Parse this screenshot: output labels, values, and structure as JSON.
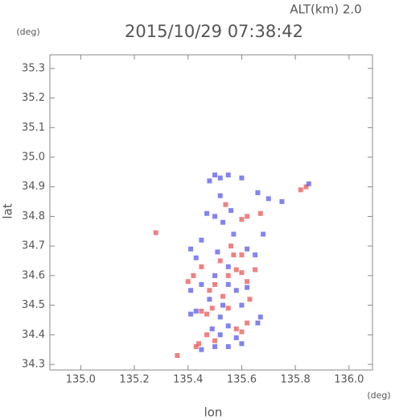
{
  "altitude_label": "ALT(km) 2.0",
  "chart_data": {
    "type": "scatter",
    "title": "2015/10/29 07:38:42",
    "y_unit": "(deg)",
    "x_unit": "(deg)",
    "ylabel": "lat",
    "xlabel": "lon",
    "xlim": [
      134.885,
      136.0875
    ],
    "ylim": [
      34.281,
      35.346
    ],
    "xticks": [
      {
        "value": 135,
        "label": "135.0"
      },
      135.2,
      135.4,
      135.6,
      135.8,
      {
        "value": 136,
        "label": "136.0"
      }
    ],
    "yticks": [
      34.3,
      34.4,
      34.5,
      34.6,
      34.7,
      34.8,
      34.9,
      {
        "value": 35,
        "label": "35.0"
      },
      35.1,
      35.2,
      35.3
    ],
    "series": [
      {
        "color": "#e85858",
        "x": [
          135.84,
          135.82,
          135.28,
          135.36,
          135.43,
          135.44,
          135.45,
          135.47,
          135.49,
          135.55,
          135.58,
          135.6,
          135.62,
          135.48,
          135.5,
          135.55,
          135.58,
          135.6,
          135.62,
          135.52,
          135.57,
          135.6,
          135.65,
          135.6,
          135.62,
          135.67,
          135.54,
          135.42,
          135.45,
          135.63,
          135.47,
          135.5,
          135.4,
          135.56,
          135.53
        ],
        "y": [
          34.9,
          34.89,
          34.745,
          34.33,
          34.36,
          34.37,
          34.48,
          34.47,
          34.49,
          34.49,
          34.42,
          34.41,
          34.44,
          34.55,
          34.57,
          34.6,
          34.62,
          34.61,
          34.58,
          34.65,
          34.67,
          34.67,
          34.62,
          34.79,
          34.8,
          34.81,
          34.84,
          34.6,
          34.63,
          34.52,
          34.4,
          34.38,
          34.58,
          34.7,
          34.53
        ]
      },
      {
        "color": "#5a5ae8",
        "x": [
          135.85,
          135.5,
          135.52,
          135.55,
          135.48,
          135.6,
          135.66,
          135.7,
          135.75,
          135.52,
          135.56,
          135.5,
          135.47,
          135.53,
          135.57,
          135.45,
          135.41,
          135.43,
          135.51,
          135.55,
          135.62,
          135.68,
          135.65,
          135.5,
          135.55,
          135.58,
          135.48,
          135.53,
          135.6,
          135.67,
          135.66,
          135.52,
          135.49,
          135.55,
          135.52,
          135.43,
          135.41,
          135.45,
          135.5,
          135.55,
          135.6,
          135.58,
          135.45,
          135.41,
          135.62
        ],
        "y": [
          34.91,
          34.94,
          34.93,
          34.94,
          34.92,
          34.93,
          34.88,
          34.86,
          34.85,
          34.87,
          34.82,
          34.8,
          34.81,
          34.78,
          34.74,
          34.72,
          34.69,
          34.66,
          34.68,
          34.63,
          34.69,
          34.74,
          34.67,
          34.6,
          34.57,
          34.55,
          34.52,
          34.5,
          34.5,
          34.46,
          34.44,
          34.46,
          34.42,
          34.43,
          34.4,
          34.48,
          34.47,
          34.35,
          34.36,
          34.36,
          34.37,
          34.39,
          34.57,
          34.55,
          34.56
        ]
      }
    ]
  }
}
